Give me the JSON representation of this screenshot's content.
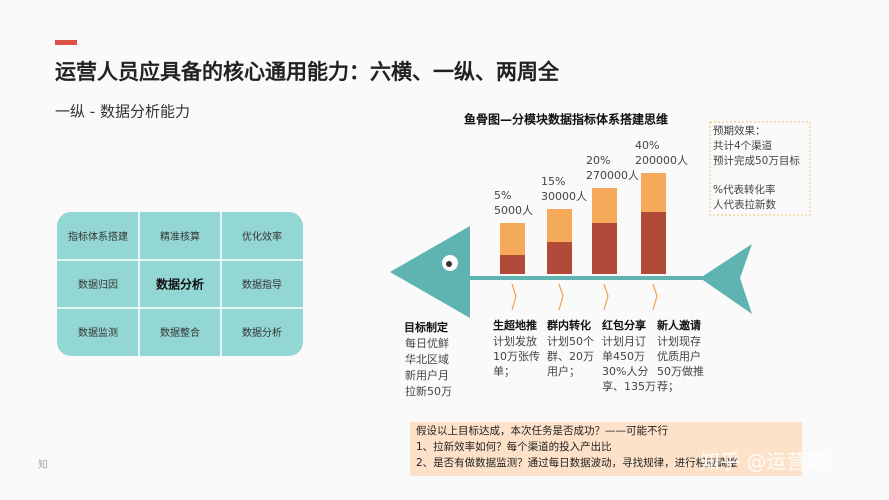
{
  "header": {
    "title": "运营人员应具备的核心通用能力：六横、一纵、两周全",
    "subtitle": "一纵 - 数据分析能力"
  },
  "grid": {
    "cells": [
      [
        "指标体系搭建",
        "精准核算",
        "优化效率"
      ],
      [
        "数据归因",
        "数据分析",
        "数据指导"
      ],
      [
        "数据监测",
        "数据整合",
        "数据分析"
      ]
    ]
  },
  "fishbone": {
    "title": "鱼骨图—分模块数据指标体系搭建思维",
    "head": {
      "title": "目标制定",
      "lines": [
        "每日优鲜",
        "华北区域",
        "新用户月",
        "拉新50万"
      ]
    },
    "bones": [
      {
        "rate": "5%",
        "users": "5000人",
        "title": "生超地推",
        "lines": [
          "计划发放",
          "10万张传",
          "单；"
        ]
      },
      {
        "rate": "15%",
        "users": "30000人",
        "title": "群内转化",
        "lines": [
          "计划50个",
          "群、20万",
          "用户；"
        ]
      },
      {
        "rate": "20%",
        "users": "270000人",
        "title": "红包分享",
        "lines": [
          "计划月订",
          "单450万",
          "30%人分",
          "享、135万"
        ]
      },
      {
        "rate": "40%",
        "users": "200000人",
        "title": "新人邀请",
        "lines": [
          "计划现存",
          "优质用户",
          "50万做推",
          "荐；"
        ]
      }
    ]
  },
  "notes": {
    "lines": [
      "预期效果：",
      "共计4个渠道",
      "预计完成50万目标",
      "%代表转化率",
      "人代表拉新数"
    ]
  },
  "conclusion": {
    "lines": [
      "假设以上目标达成，本次任务是否成功？——可能不行",
      "1、拉新效率如何？每个渠道的投入产出比",
      "2、是否有做数据监测？通过每日数据波动，寻找规律，进行相应调整"
    ]
  },
  "watermark": {
    "text": "知乎 @运营喵",
    "corner": "知"
  }
}
